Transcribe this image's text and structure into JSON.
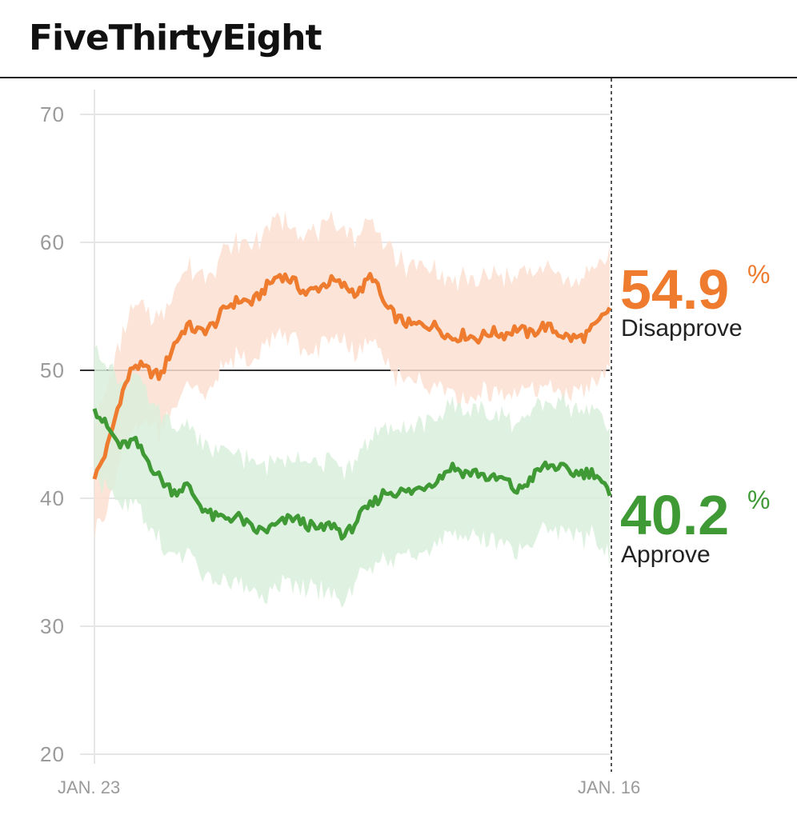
{
  "header": {
    "brand": "FiveThirtyEight"
  },
  "colors": {
    "approve": "#3f9a35",
    "approve_band": "#d9eedb",
    "disapprove": "#ee7b2e",
    "disapprove_band": "#fbe1d1",
    "grid": "#e6e6e6",
    "baseline": "#333333",
    "axis_text": "#9a9a9a"
  },
  "chart_data": {
    "type": "line",
    "y_ticks": [
      "70",
      "60",
      "50",
      "40",
      "30",
      "20"
    ],
    "ylim": [
      20,
      70
    ],
    "x_tick_labels": [
      "JAN. 23",
      "JAN. 16"
    ],
    "reference_line": 50,
    "grid": true,
    "series": [
      {
        "name": "Disapprove",
        "current_value": "54.9",
        "unit": "%",
        "band_halfwidth": 4.5,
        "values": [
          41.5,
          44,
          48,
          50.5,
          50,
          49.5,
          52,
          53.5,
          53,
          53.5,
          55,
          55.5,
          55.3,
          56.5,
          57.5,
          57,
          56,
          56.5,
          57,
          56.5,
          56,
          57.5,
          55,
          54,
          53.5,
          53.6,
          53.4,
          52.5,
          52.8,
          52.5,
          53,
          52.8,
          53.3,
          52.8,
          53.5,
          53,
          52.5,
          52.6,
          53.5,
          54.9
        ]
      },
      {
        "name": "Approve",
        "current_value": "40.2",
        "unit": "%",
        "band_halfwidth": 5,
        "values": [
          47,
          45.5,
          44,
          44.5,
          43,
          41.5,
          40.5,
          41,
          39.5,
          38.5,
          38.5,
          38.5,
          37.5,
          37.5,
          38,
          38.5,
          38,
          37.5,
          38,
          37,
          38.5,
          39.5,
          40.5,
          40.5,
          40.5,
          41,
          41.5,
          42.5,
          42,
          42,
          41.5,
          41.5,
          40.5,
          41.5,
          42.5,
          42.5,
          42,
          42,
          42,
          40.2
        ]
      }
    ]
  }
}
